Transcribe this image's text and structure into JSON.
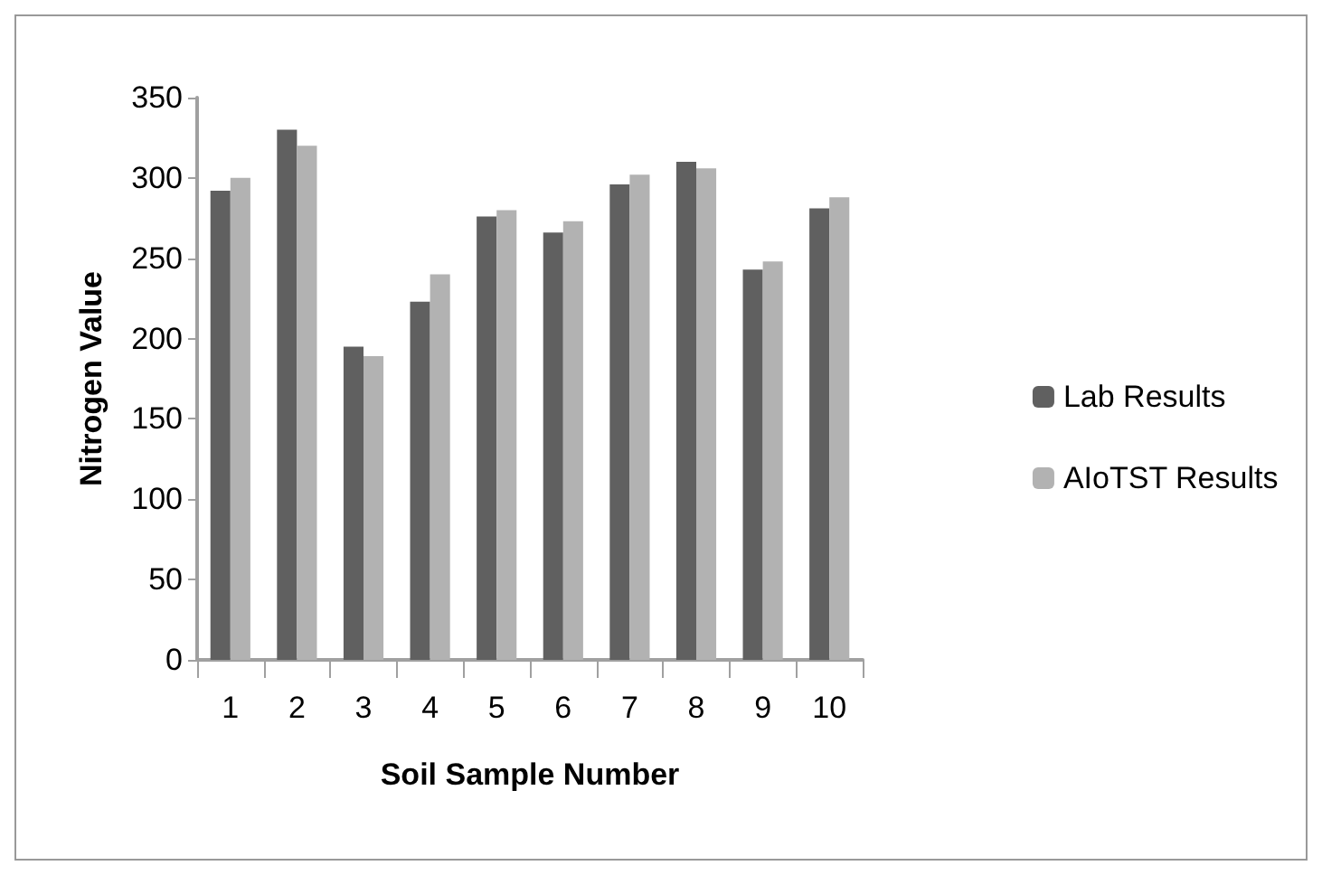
{
  "chart_data": {
    "type": "bar",
    "xlabel": "Soil Sample Number",
    "ylabel": "Nitrogen Value",
    "categories": [
      "1",
      "2",
      "3",
      "4",
      "5",
      "6",
      "7",
      "8",
      "9",
      "10"
    ],
    "series": [
      {
        "name": "Lab Results",
        "color": "#606060",
        "values": [
          292,
          330,
          195,
          223,
          276,
          266,
          296,
          310,
          243,
          281
        ]
      },
      {
        "name": "AIoTST Results",
        "color": "#b2b2b2",
        "values": [
          300,
          320,
          189,
          240,
          280,
          273,
          302,
          306,
          248,
          288
        ]
      }
    ],
    "ylim": [
      0,
      350
    ],
    "yticks": [
      0,
      50,
      100,
      150,
      200,
      250,
      300,
      350
    ],
    "grid": false,
    "legend": "right"
  }
}
